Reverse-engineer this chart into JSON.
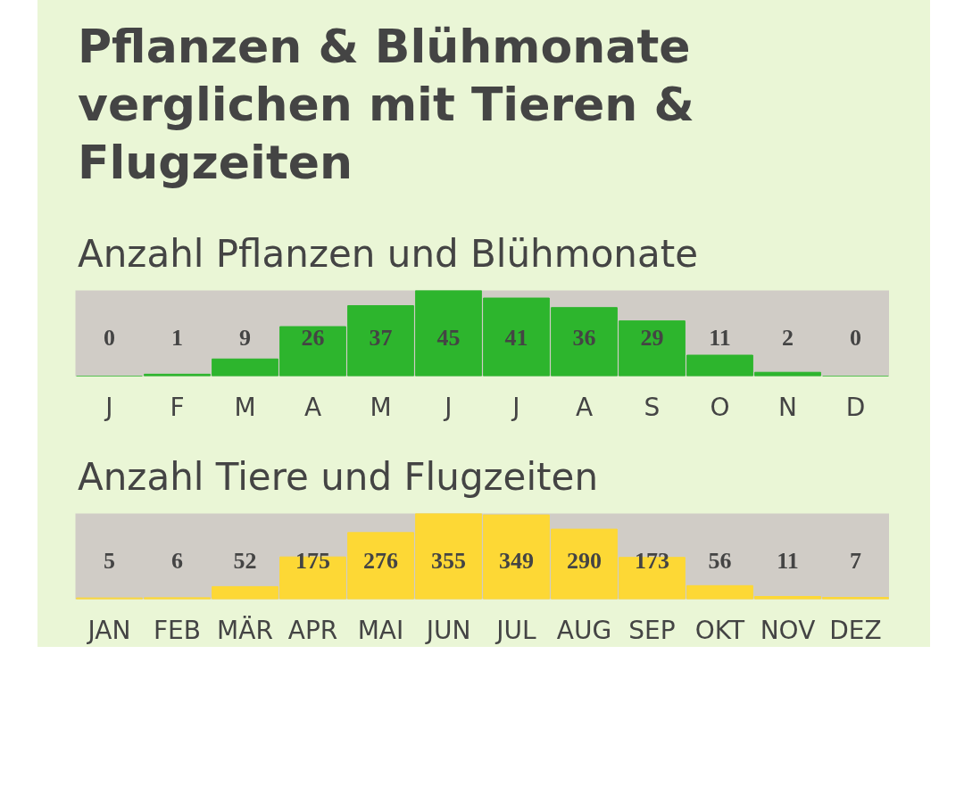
{
  "chart_data": [
    {
      "type": "bar",
      "title": "Pflanzen & Blühmonate verglichen mit Tieren & Flugzeiten",
      "subtitle": "Anzahl Pflanzen und Blühmonate",
      "categories": [
        "J",
        "F",
        "M",
        "A",
        "M",
        "J",
        "J",
        "A",
        "S",
        "O",
        "N",
        "D"
      ],
      "values": [
        0,
        1,
        9,
        26,
        37,
        45,
        41,
        36,
        29,
        11,
        2,
        0
      ],
      "color": "#2db52d",
      "data_labels": true
    },
    {
      "type": "bar",
      "title": "Anzahl Tiere und Flugzeiten",
      "categories": [
        "JAN",
        "FEB",
        "MÄR",
        "APR",
        "MAI",
        "JUN",
        "JUL",
        "AUG",
        "SEP",
        "OKT",
        "NOV",
        "DEZ"
      ],
      "values": [
        5,
        6,
        52,
        175,
        276,
        355,
        349,
        290,
        173,
        56,
        11,
        7
      ],
      "color": "#fdd835",
      "data_labels": true
    }
  ]
}
